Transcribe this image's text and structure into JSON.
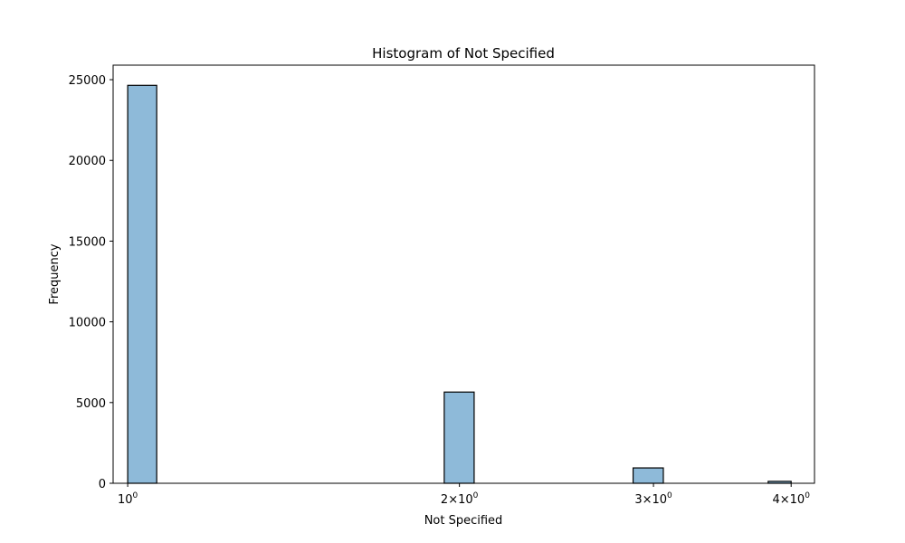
{
  "chart_data": {
    "type": "bar",
    "title": "Histogram of Not Specified",
    "xlabel": "Not Specified",
    "ylabel": "Frequency",
    "x_scale": "log",
    "xlim": [
      0.97,
      4.2
    ],
    "ylim": [
      0,
      25900
    ],
    "x_ticks": [
      {
        "value": 1,
        "mantissa": "",
        "exponent": "0",
        "base": "10"
      },
      {
        "value": 2,
        "mantissa": "2",
        "exponent": "0",
        "base": "10"
      },
      {
        "value": 3,
        "mantissa": "3",
        "exponent": "0",
        "base": "10"
      },
      {
        "value": 4,
        "mantissa": "4",
        "exponent": "0",
        "base": "10"
      }
    ],
    "y_ticks": [
      0,
      5000,
      10000,
      15000,
      20000,
      25000
    ],
    "bins": [
      {
        "x_start": 1.0,
        "x_end": 1.0625,
        "value": 24650
      },
      {
        "x_start": 1.9375,
        "x_end": 2.0625,
        "value": 5650
      },
      {
        "x_start": 2.875,
        "x_end": 3.0625,
        "value": 950
      },
      {
        "x_start": 3.8125,
        "x_end": 4.0,
        "value": 120
      }
    ],
    "bar_color": "#8ebad9",
    "edge_color": "#000000",
    "grid": false
  }
}
